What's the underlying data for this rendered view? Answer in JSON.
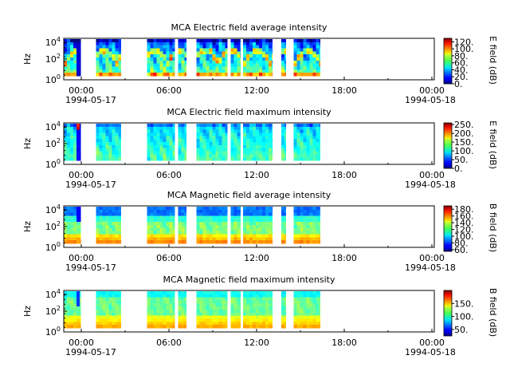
{
  "figure": {
    "width": 640,
    "height": 480
  },
  "chart_data": [
    {
      "type": "heatmap",
      "title": "MCA  Electric field average intensity",
      "ylabel": "Hz",
      "y_scale": "log",
      "y_ticks": [
        {
          "base": "10",
          "exp": "0"
        },
        {
          "base": "10",
          "exp": "2"
        },
        {
          "base": "10",
          "exp": "4"
        }
      ],
      "x_ticks": [
        "00:00",
        "06:00",
        "12:00",
        "18:00",
        "00:00"
      ],
      "x_dates": {
        "start": "1994-05-17",
        "end": "1994-05-18"
      },
      "x_range_hours": [
        0,
        24
      ],
      "data_segments_hours": [
        [
          0.0,
          1.1
        ],
        [
          2.1,
          3.7
        ],
        [
          5.4,
          7.2
        ],
        [
          7.4,
          7.95
        ],
        [
          8.6,
          10.6
        ],
        [
          10.8,
          11.45
        ],
        [
          11.6,
          13.5
        ],
        [
          14.1,
          14.4
        ],
        [
          14.9,
          16.6
        ]
      ],
      "colorbar": {
        "label": "E field (dB)",
        "range": [
          0,
          130
        ],
        "ticks": [
          "120.",
          "100.",
          "80.",
          "60.",
          "40.",
          "20.",
          "0."
        ]
      },
      "style": "avg"
    },
    {
      "type": "heatmap",
      "title": "MCA  Electric field maximum intensity",
      "ylabel": "Hz",
      "y_scale": "log",
      "y_ticks": [
        {
          "base": "10",
          "exp": "0"
        },
        {
          "base": "10",
          "exp": "2"
        },
        {
          "base": "10",
          "exp": "4"
        }
      ],
      "x_ticks": [
        "00:00",
        "06:00",
        "12:00",
        "18:00",
        "00:00"
      ],
      "x_dates": {
        "start": "1994-05-17",
        "end": "1994-05-18"
      },
      "x_range_hours": [
        0,
        24
      ],
      "data_segments_hours": [
        [
          0.0,
          1.1
        ],
        [
          2.1,
          3.7
        ],
        [
          5.4,
          7.2
        ],
        [
          7.4,
          7.95
        ],
        [
          8.6,
          10.6
        ],
        [
          10.8,
          11.45
        ],
        [
          11.6,
          13.5
        ],
        [
          14.1,
          14.4
        ],
        [
          14.9,
          16.6
        ]
      ],
      "colorbar": {
        "label": "E field (dB)",
        "range": [
          0,
          260
        ],
        "ticks": [
          "250.",
          "200.",
          "150.",
          "100.",
          "50.",
          "0."
        ]
      },
      "style": "emax"
    },
    {
      "type": "heatmap",
      "title": "MCA  Magnetic field average intensity",
      "ylabel": "Hz",
      "y_scale": "log",
      "y_ticks": [
        {
          "base": "10",
          "exp": "0"
        },
        {
          "base": "10",
          "exp": "2"
        },
        {
          "base": "10",
          "exp": "4"
        }
      ],
      "x_ticks": [
        "00:00",
        "06:00",
        "12:00",
        "18:00",
        "00:00"
      ],
      "x_dates": {
        "start": "1994-05-17",
        "end": "1994-05-18"
      },
      "x_range_hours": [
        0,
        24
      ],
      "data_segments_hours": [
        [
          0.0,
          1.1
        ],
        [
          2.1,
          3.7
        ],
        [
          5.4,
          7.2
        ],
        [
          7.4,
          7.95
        ],
        [
          8.6,
          10.6
        ],
        [
          10.8,
          11.45
        ],
        [
          11.6,
          13.5
        ],
        [
          14.1,
          14.4
        ],
        [
          14.9,
          16.6
        ]
      ],
      "colorbar": {
        "label": "B field (dB)",
        "range": [
          55,
          190
        ],
        "ticks": [
          "180.",
          "160.",
          "140.",
          "120.",
          "100.",
          "80.",
          "60."
        ]
      },
      "style": "bavg"
    },
    {
      "type": "heatmap",
      "title": "MCA  Magnetic field maximum intensity",
      "ylabel": "Hz",
      "y_scale": "log",
      "y_ticks": [
        {
          "base": "10",
          "exp": "0"
        },
        {
          "base": "10",
          "exp": "2"
        },
        {
          "base": "10",
          "exp": "4"
        }
      ],
      "x_ticks": [
        "00:00",
        "06:00",
        "12:00",
        "18:00",
        "00:00"
      ],
      "x_dates": {
        "start": "1994-05-17",
        "end": "1994-05-18"
      },
      "x_range_hours": [
        0,
        24
      ],
      "data_segments_hours": [
        [
          0.0,
          1.1
        ],
        [
          2.1,
          3.7
        ],
        [
          5.4,
          7.2
        ],
        [
          7.4,
          7.95
        ],
        [
          8.6,
          10.6
        ],
        [
          10.8,
          11.45
        ],
        [
          11.6,
          13.5
        ],
        [
          14.1,
          14.4
        ],
        [
          14.9,
          16.6
        ]
      ],
      "colorbar": {
        "label": "B field (dB)",
        "range": [
          25,
          200
        ],
        "ticks": [
          "150.",
          "100.",
          "50."
        ]
      },
      "style": "bmax"
    }
  ]
}
